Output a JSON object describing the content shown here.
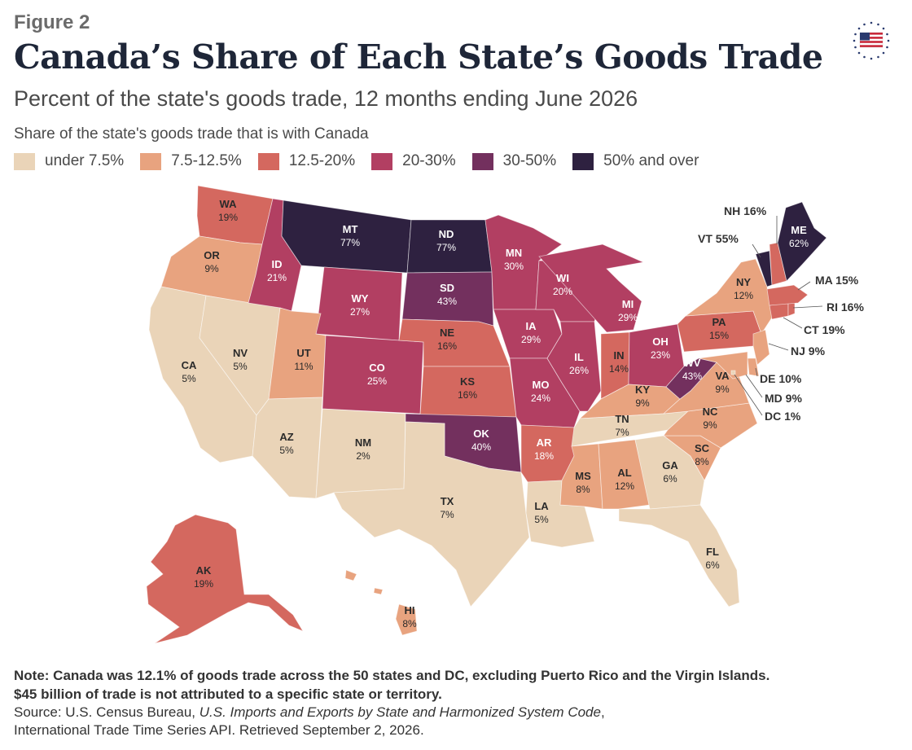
{
  "header": {
    "figure_label": "Figure 2",
    "title": "Canada’s Share of Each State’s Goods Trade",
    "subtitle": "Percent of the state's goods trade, 12 months ending June 2026"
  },
  "legend": {
    "title": "Share of the state's goods trade that is with Canada",
    "items": [
      {
        "label": "under 7.5%",
        "color": "#ead4b8"
      },
      {
        "label": "7.5-12.5%",
        "color": "#e8a37f"
      },
      {
        "label": "12.5-20%",
        "color": "#d4685f"
      },
      {
        "label": "20-30%",
        "color": "#b23f62"
      },
      {
        "label": "30-50%",
        "color": "#73305e"
      },
      {
        "label": "50% and over",
        "color": "#2e2140"
      }
    ]
  },
  "logo": {
    "icon": "american-flag-stars-icon"
  },
  "map_data": {
    "WA": {
      "abbr": "WA",
      "value": "19%"
    },
    "OR": {
      "abbr": "OR",
      "value": "9%"
    },
    "CA": {
      "abbr": "CA",
      "value": "5%"
    },
    "NV": {
      "abbr": "NV",
      "value": "5%"
    },
    "ID": {
      "abbr": "ID",
      "value": "21%"
    },
    "MT": {
      "abbr": "MT",
      "value": "77%"
    },
    "WY": {
      "abbr": "WY",
      "value": "27%"
    },
    "UT": {
      "abbr": "UT",
      "value": "11%"
    },
    "AZ": {
      "abbr": "AZ",
      "value": "5%"
    },
    "CO": {
      "abbr": "CO",
      "value": "25%"
    },
    "NM": {
      "abbr": "NM",
      "value": "2%"
    },
    "ND": {
      "abbr": "ND",
      "value": "77%"
    },
    "SD": {
      "abbr": "SD",
      "value": "43%"
    },
    "NE": {
      "abbr": "NE",
      "value": "16%"
    },
    "KS": {
      "abbr": "KS",
      "value": "16%"
    },
    "OK": {
      "abbr": "OK",
      "value": "40%"
    },
    "TX": {
      "abbr": "TX",
      "value": "7%"
    },
    "MN": {
      "abbr": "MN",
      "value": "30%"
    },
    "IA": {
      "abbr": "IA",
      "value": "29%"
    },
    "MO": {
      "abbr": "MO",
      "value": "24%"
    },
    "AR": {
      "abbr": "AR",
      "value": "18%"
    },
    "LA": {
      "abbr": "LA",
      "value": "5%"
    },
    "WI": {
      "abbr": "WI",
      "value": "20%"
    },
    "IL": {
      "abbr": "IL",
      "value": "26%"
    },
    "MI": {
      "abbr": "MI",
      "value": "29%"
    },
    "IN": {
      "abbr": "IN",
      "value": "14%"
    },
    "OH": {
      "abbr": "OH",
      "value": "23%"
    },
    "KY": {
      "abbr": "KY",
      "value": "9%"
    },
    "TN": {
      "abbr": "TN",
      "value": "7%"
    },
    "MS": {
      "abbr": "MS",
      "value": "8%"
    },
    "AL": {
      "abbr": "AL",
      "value": "12%"
    },
    "GA": {
      "abbr": "GA",
      "value": "6%"
    },
    "FL": {
      "abbr": "FL",
      "value": "6%"
    },
    "SC": {
      "abbr": "SC",
      "value": "8%"
    },
    "NC": {
      "abbr": "NC",
      "value": "9%"
    },
    "VA": {
      "abbr": "VA",
      "value": "9%"
    },
    "WV": {
      "abbr": "WV",
      "value": "43%"
    },
    "PA": {
      "abbr": "PA",
      "value": "15%"
    },
    "NY": {
      "abbr": "NY",
      "value": "12%"
    },
    "ME": {
      "abbr": "ME",
      "value": "62%"
    },
    "AK": {
      "abbr": "AK",
      "value": "19%"
    },
    "HI": {
      "abbr": "HI",
      "value": "8%"
    },
    "VT": {
      "abbr": "VT",
      "value": "55%"
    },
    "NH": {
      "abbr": "NH",
      "value": "16%"
    },
    "MA": {
      "abbr": "MA",
      "value": "15%"
    },
    "RI": {
      "abbr": "RI",
      "value": "16%"
    },
    "CT": {
      "abbr": "CT",
      "value": "19%"
    },
    "NJ": {
      "abbr": "NJ",
      "value": "9%"
    },
    "DE": {
      "abbr": "DE",
      "value": "10%"
    },
    "MD": {
      "abbr": "MD",
      "value": "9%"
    },
    "DC": {
      "abbr": "DC",
      "value": "1%"
    }
  },
  "footer": {
    "note_line1": "Note: Canada was 12.1% of goods trade across the 50 states and DC, excluding Puerto Rico and the Virgin Islands.",
    "note_line2": "$45 billion of trade is not attributed to a specific state or territory.",
    "source_prefix": "Source: U.S. Census Bureau, ",
    "source_title": "U.S. Imports and Exports by State and Harmonized System Code",
    "source_suffix": ",",
    "source_line2": "International Trade Time Series API. Retrieved September 2, 2026."
  }
}
